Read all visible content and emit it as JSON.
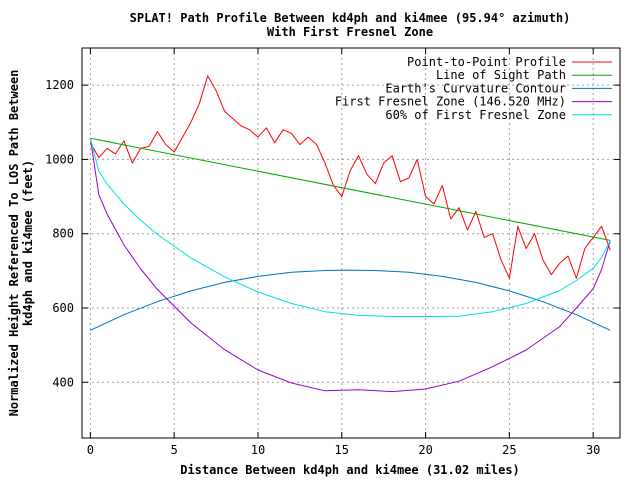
{
  "chart_data": {
    "type": "line",
    "title": "SPLAT! Path Profile Between kd4ph and ki4mee (95.94° azimuth)",
    "subtitle": "With First Fresnel Zone",
    "xlabel": "Distance Between kd4ph and ki4mee (31.02 miles)",
    "ylabel_line1": "Normalized Height Referenced To LOS Path Between",
    "ylabel_line2": "kd4ph and ki4mee (feet)",
    "xlim": [
      -0.5,
      31.6
    ],
    "ylim": [
      250,
      1300
    ],
    "x_ticks": [
      0,
      5,
      10,
      15,
      20,
      25,
      30
    ],
    "y_ticks": [
      400,
      600,
      800,
      1000,
      1200
    ],
    "grid": true,
    "legend_position": "top-right",
    "series": [
      {
        "name": "Point-to-Point Profile",
        "color": "#ff0000",
        "x": [
          0,
          0.5,
          1,
          1.5,
          2,
          2.5,
          3,
          3.5,
          4,
          4.5,
          5,
          5.5,
          6,
          6.5,
          7,
          7.5,
          8,
          8.5,
          9,
          9.5,
          10,
          10.5,
          11,
          11.5,
          12,
          12.5,
          13,
          13.5,
          14,
          14.5,
          15,
          15.5,
          16,
          16.5,
          17,
          17.5,
          18,
          18.5,
          19,
          19.5,
          20,
          20.5,
          21,
          21.5,
          22,
          22.5,
          23,
          23.5,
          24,
          24.5,
          25,
          25.5,
          26,
          26.5,
          27,
          27.5,
          28,
          28.5,
          29,
          29.5,
          30,
          30.5,
          31.02
        ],
        "y": [
          1045,
          1005,
          1030,
          1015,
          1050,
          990,
          1030,
          1035,
          1075,
          1040,
          1020,
          1060,
          1100,
          1150,
          1225,
          1185,
          1130,
          1110,
          1090,
          1080,
          1060,
          1085,
          1045,
          1080,
          1070,
          1040,
          1060,
          1040,
          990,
          930,
          900,
          970,
          1010,
          960,
          935,
          990,
          1010,
          940,
          950,
          1000,
          900,
          880,
          930,
          840,
          870,
          810,
          860,
          790,
          800,
          730,
          680,
          820,
          760,
          800,
          730,
          690,
          720,
          740,
          680,
          760,
          790,
          820,
          755
        ]
      },
      {
        "name": "Line of Sight Path",
        "color": "#00aa00",
        "x": [
          0,
          31.02
        ],
        "y": [
          1057,
          782
        ]
      },
      {
        "name": "Earth's Curvature Contour",
        "color": "#0070c0",
        "x": [
          0,
          2,
          4,
          6,
          8,
          10,
          12,
          14,
          15.5,
          17,
          19,
          21,
          23,
          25,
          27,
          29,
          31.02
        ],
        "y": [
          540,
          582,
          617,
          646,
          669,
          685,
          696,
          701,
          702,
          701,
          696,
          685,
          669,
          646,
          617,
          582,
          540
        ]
      },
      {
        "name": "First Fresnel Zone (146.520 MHz)",
        "color": "#9400d3",
        "x": [
          0,
          0.5,
          1,
          2,
          3,
          4,
          6,
          8,
          10,
          12,
          14,
          16,
          18,
          20,
          22,
          24,
          26,
          28,
          29,
          30,
          30.5,
          31.02
        ],
        "y": [
          1057,
          905,
          853,
          770,
          705,
          650,
          560,
          488,
          433,
          398,
          377,
          380,
          375,
          382,
          403,
          442,
          487,
          550,
          600,
          652,
          704,
          782
        ]
      },
      {
        "name": "60% of First Fresnel Zone",
        "color": "#00e0e0",
        "x": [
          0,
          0.5,
          1,
          2,
          3,
          4,
          6,
          8,
          10,
          12,
          14,
          16,
          18,
          20,
          22,
          24,
          26,
          28,
          29,
          30,
          30.5,
          31.02
        ],
        "y": [
          1057,
          968,
          934,
          880,
          836,
          798,
          735,
          684,
          643,
          612,
          590,
          580,
          577,
          577,
          578,
          590,
          612,
          647,
          674,
          707,
          736,
          782
        ]
      }
    ]
  }
}
